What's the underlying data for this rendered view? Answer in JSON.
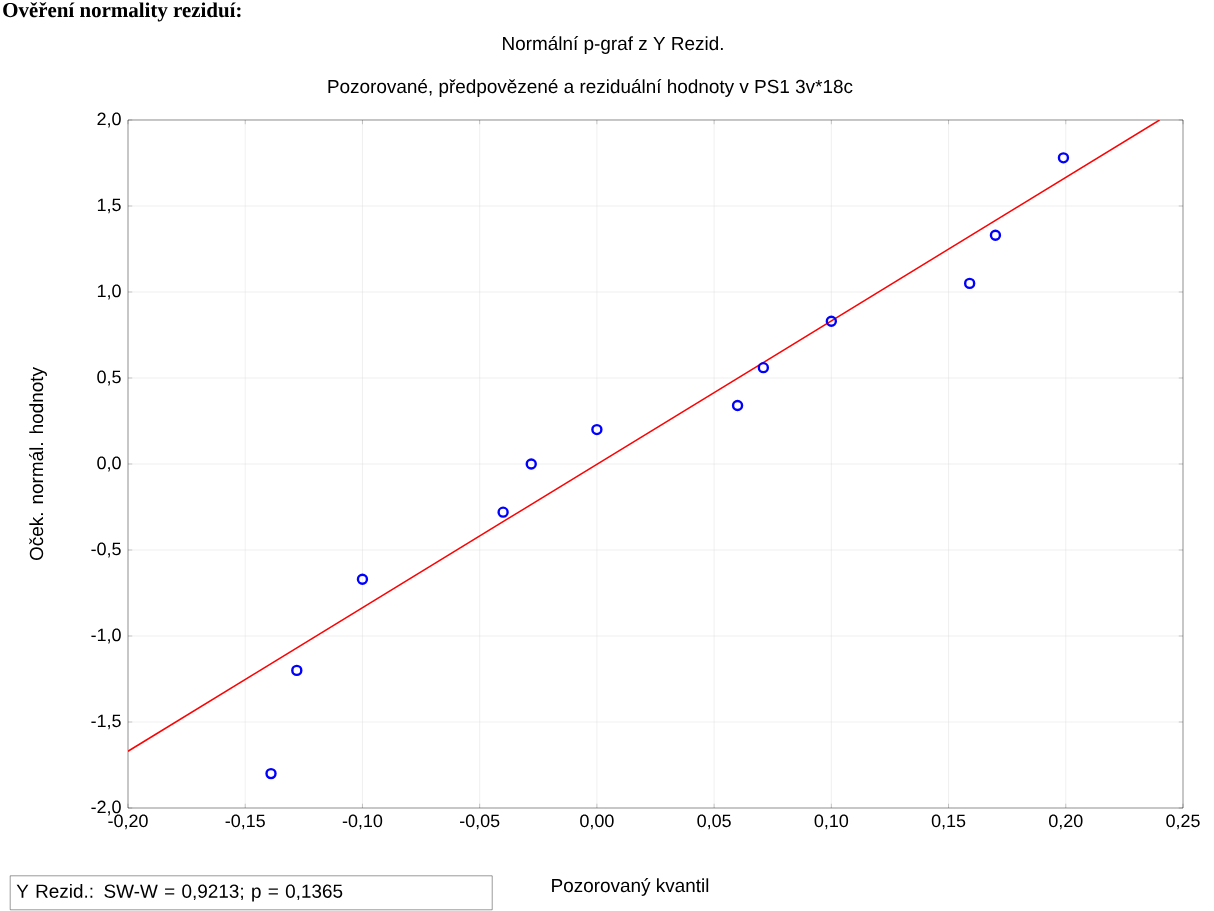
{
  "chart_data": {
    "type": "scatter",
    "title": "Normální p-graf z Y Rezid.",
    "subtitle": "Pozorované, předpovězené a reziduální hodnoty v PS1 3v*18c",
    "xlabel": "Pozorovaný kvantil",
    "ylabel": "Oček. normál. hodnoty",
    "annotations": [
      "**Ověření normality reziduí:**",
      "Y Rezid.:  SW-W = 0,9213; p = 0,1365"
    ],
    "series": [
      {
        "color": "#0000ff",
        "marker": "circle",
        "x": [
          -0.139,
          -0.128,
          -0.1,
          -0.04,
          -0.028,
          0.0,
          0.06,
          0.071,
          0.1,
          0.159,
          0.17,
          0.199
        ],
        "values": [
          -1.8,
          -1.2,
          -0.67,
          -0.28,
          0.0,
          0.2,
          0.34,
          0.56,
          0.83,
          1.05,
          1.33,
          1.78
        ]
      },
      {
        "type": "line",
        "color": "#ff0000",
        "marker": "none",
        "x": [
          -0.2,
          0.24
        ],
        "values": [
          -1.67,
          2.0
        ]
      }
    ],
    "xlim": [
      -0.2,
      0.25
    ],
    "ylim": [
      -2.0,
      2.0
    ],
    "xticks": [
      {
        "value": -0.2,
        "label": "-0,20"
      },
      {
        "value": -0.15,
        "label": "-0,15"
      },
      {
        "value": -0.1,
        "label": "-0,10"
      },
      {
        "value": -0.05,
        "label": "-0,05"
      },
      {
        "value": 0.0,
        "label": "0,00"
      },
      {
        "value": 0.05,
        "label": "0,05"
      },
      {
        "value": 0.1,
        "label": "0,10"
      },
      {
        "value": 0.15,
        "label": "0,15"
      },
      {
        "value": 0.2,
        "label": "0,20"
      },
      {
        "value": 0.25,
        "label": "0,25"
      }
    ],
    "yticks": [
      {
        "value": -2.0,
        "label": "-2,0"
      },
      {
        "value": -1.5,
        "label": "-1,5"
      },
      {
        "value": -1.0,
        "label": "-1,0"
      },
      {
        "value": -0.5,
        "label": "-0,5"
      },
      {
        "value": 0.0,
        "label": "0,0"
      },
      {
        "value": 0.5,
        "label": "0,5"
      },
      {
        "value": 1.0,
        "label": "1,0"
      },
      {
        "value": 1.5,
        "label": "1,5"
      },
      {
        "value": 2.0,
        "label": "2,0"
      }
    ],
    "grid": true
  }
}
